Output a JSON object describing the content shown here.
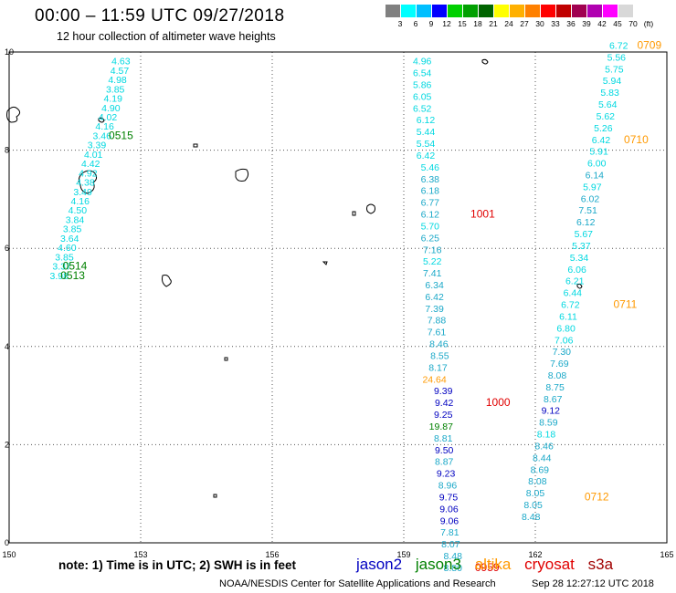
{
  "header": {
    "title": "00:00 – 11:59 UTC 09/27/2018",
    "subtitle": "12 hour collection of altimeter wave heights"
  },
  "color_scale": {
    "swatches": [
      "#808080",
      "#00ffff",
      "#00bfff",
      "#0000ff",
      "#00d000",
      "#00a000",
      "#006400",
      "#ffff00",
      "#ffb000",
      "#ff8000",
      "#ff0000",
      "#c00000",
      "#a00050",
      "#b000b0",
      "#ff00ff",
      "#d8d8d8"
    ],
    "labels": [
      "3",
      "6",
      "9",
      "12",
      "15",
      "18",
      "21",
      "24",
      "27",
      "30",
      "33",
      "36",
      "39",
      "42",
      "45",
      "70",
      "(ft)"
    ]
  },
  "map": {
    "x_range": [
      150,
      165
    ],
    "y_range": [
      0,
      10
    ],
    "x_ticks": [
      "150",
      "153",
      "156",
      "159",
      "162",
      "165"
    ],
    "y_ticks": [
      "0",
      "2",
      "4",
      "6",
      "8",
      "10"
    ]
  },
  "colors": {
    "jason2": "#0000c0",
    "jason3": "#008000",
    "altika": "#ff9900",
    "cryosat": "#e00000",
    "s3a": "#a00000",
    "light": "#00d8e0",
    "mid": "#1aa8c8",
    "time": "#e00000"
  },
  "tracks": [
    {
      "name": "left",
      "points": [
        {
          "lon": 152.55,
          "lat": 9.82,
          "v": "4.63",
          "c": "light"
        },
        {
          "lon": 152.52,
          "lat": 9.63,
          "v": "4.57",
          "c": "light"
        },
        {
          "lon": 152.47,
          "lat": 9.44,
          "v": "4.98",
          "c": "light"
        },
        {
          "lon": 152.42,
          "lat": 9.25,
          "v": "3.85",
          "c": "light"
        },
        {
          "lon": 152.37,
          "lat": 9.06,
          "v": "4.19",
          "c": "light"
        },
        {
          "lon": 152.32,
          "lat": 8.87,
          "v": "4.90",
          "c": "light"
        },
        {
          "lon": 152.25,
          "lat": 8.68,
          "v": "4.02",
          "c": "light"
        },
        {
          "lon": 152.18,
          "lat": 8.49,
          "v": "4.16",
          "c": "light"
        },
        {
          "lon": 152.12,
          "lat": 8.3,
          "v": "3.46",
          "c": "light"
        },
        {
          "lon": 152.0,
          "lat": 8.11,
          "v": "3.39",
          "c": "light"
        },
        {
          "lon": 151.92,
          "lat": 7.92,
          "v": "4.01",
          "c": "light"
        },
        {
          "lon": 151.86,
          "lat": 7.73,
          "v": "4.42",
          "c": "light"
        },
        {
          "lon": 151.8,
          "lat": 7.54,
          "v": "4.92",
          "c": "light"
        },
        {
          "lon": 151.74,
          "lat": 7.35,
          "v": "4.38",
          "c": "light"
        },
        {
          "lon": 151.68,
          "lat": 7.16,
          "v": "3.49",
          "c": "light"
        },
        {
          "lon": 151.62,
          "lat": 6.97,
          "v": "4.16",
          "c": "light"
        },
        {
          "lon": 151.56,
          "lat": 6.78,
          "v": "4.50",
          "c": "light"
        },
        {
          "lon": 151.5,
          "lat": 6.59,
          "v": "3.84",
          "c": "light"
        },
        {
          "lon": 151.44,
          "lat": 6.4,
          "v": "3.85",
          "c": "light"
        },
        {
          "lon": 151.38,
          "lat": 6.21,
          "v": "3.64",
          "c": "light"
        },
        {
          "lon": 151.32,
          "lat": 6.02,
          "v": "4.60",
          "c": "light"
        },
        {
          "lon": 151.26,
          "lat": 5.83,
          "v": "3.85",
          "c": "light"
        },
        {
          "lon": 151.2,
          "lat": 5.64,
          "v": "3.37",
          "c": "light"
        },
        {
          "lon": 151.14,
          "lat": 5.45,
          "v": "3.98",
          "c": "light"
        }
      ]
    },
    {
      "name": "middle",
      "points": [
        {
          "lon": 159.42,
          "lat": 9.82,
          "v": "4.96",
          "c": "light"
        },
        {
          "lon": 159.42,
          "lat": 9.58,
          "v": "6.54",
          "c": "light"
        },
        {
          "lon": 159.42,
          "lat": 9.34,
          "v": "5.86",
          "c": "light"
        },
        {
          "lon": 159.42,
          "lat": 9.1,
          "v": "6.05",
          "c": "light"
        },
        {
          "lon": 159.42,
          "lat": 8.86,
          "v": "6.52",
          "c": "light"
        },
        {
          "lon": 159.5,
          "lat": 8.62,
          "v": "6.12",
          "c": "light"
        },
        {
          "lon": 159.5,
          "lat": 8.38,
          "v": "5.44",
          "c": "light"
        },
        {
          "lon": 159.5,
          "lat": 8.14,
          "v": "5.54",
          "c": "light"
        },
        {
          "lon": 159.5,
          "lat": 7.9,
          "v": "6.42",
          "c": "light"
        },
        {
          "lon": 159.6,
          "lat": 7.66,
          "v": "5.46",
          "c": "light"
        },
        {
          "lon": 159.6,
          "lat": 7.42,
          "v": "6.38",
          "c": "mid"
        },
        {
          "lon": 159.6,
          "lat": 7.18,
          "v": "6.18",
          "c": "mid"
        },
        {
          "lon": 159.6,
          "lat": 6.94,
          "v": "6.77",
          "c": "mid"
        },
        {
          "lon": 159.6,
          "lat": 6.7,
          "v": "6.12",
          "c": "mid"
        },
        {
          "lon": 159.6,
          "lat": 6.46,
          "v": "5.70",
          "c": "light"
        },
        {
          "lon": 159.6,
          "lat": 6.22,
          "v": "6.25",
          "c": "mid"
        },
        {
          "lon": 159.65,
          "lat": 5.98,
          "v": "7.16",
          "c": "mid"
        },
        {
          "lon": 159.65,
          "lat": 5.74,
          "v": "5.22",
          "c": "light"
        },
        {
          "lon": 159.65,
          "lat": 5.5,
          "v": "7.41",
          "c": "mid"
        },
        {
          "lon": 159.7,
          "lat": 5.26,
          "v": "6.34",
          "c": "mid"
        },
        {
          "lon": 159.7,
          "lat": 5.02,
          "v": "6.42",
          "c": "mid"
        },
        {
          "lon": 159.7,
          "lat": 4.78,
          "v": "7.39",
          "c": "mid"
        },
        {
          "lon": 159.75,
          "lat": 4.54,
          "v": "7.88",
          "c": "mid"
        },
        {
          "lon": 159.75,
          "lat": 4.3,
          "v": "7.61",
          "c": "mid"
        },
        {
          "lon": 159.8,
          "lat": 4.06,
          "v": "8.46",
          "c": "mid"
        },
        {
          "lon": 159.82,
          "lat": 3.82,
          "v": "8.55",
          "c": "mid"
        },
        {
          "lon": 159.78,
          "lat": 3.58,
          "v": "8.17",
          "c": "mid"
        },
        {
          "lon": 159.7,
          "lat": 3.34,
          "v": "24.64",
          "c": "altika"
        },
        {
          "lon": 159.9,
          "lat": 3.1,
          "v": "9.39",
          "c": "jason2"
        },
        {
          "lon": 159.92,
          "lat": 2.86,
          "v": "9.42",
          "c": "jason2"
        },
        {
          "lon": 159.9,
          "lat": 2.62,
          "v": "9.25",
          "c": "jason2"
        },
        {
          "lon": 159.85,
          "lat": 2.38,
          "v": "19.87",
          "c": "jason3"
        },
        {
          "lon": 159.9,
          "lat": 2.14,
          "v": "8.81",
          "c": "mid"
        },
        {
          "lon": 159.92,
          "lat": 1.9,
          "v": "9.50",
          "c": "jason2"
        },
        {
          "lon": 159.92,
          "lat": 1.66,
          "v": "8.87",
          "c": "mid"
        },
        {
          "lon": 159.96,
          "lat": 1.42,
          "v": "9.23",
          "c": "jason2"
        },
        {
          "lon": 160.0,
          "lat": 1.18,
          "v": "8.96",
          "c": "mid"
        },
        {
          "lon": 160.02,
          "lat": 0.94,
          "v": "9.75",
          "c": "jason2"
        },
        {
          "lon": 160.03,
          "lat": 0.7,
          "v": "9.06",
          "c": "jason2"
        },
        {
          "lon": 160.04,
          "lat": 0.46,
          "v": "9.06",
          "c": "jason2"
        },
        {
          "lon": 160.05,
          "lat": 0.22,
          "v": "7.81",
          "c": "mid"
        },
        {
          "lon": 160.07,
          "lat": -0.02,
          "v": "8.07",
          "c": "mid"
        },
        {
          "lon": 160.12,
          "lat": -0.26,
          "v": "8.48",
          "c": "mid"
        },
        {
          "lon": 160.12,
          "lat": -0.5,
          "v": "8.80",
          "c": "mid"
        }
      ]
    },
    {
      "name": "right",
      "points": [
        {
          "lon": 163.9,
          "lat": 10.14,
          "v": "6.72",
          "c": "light"
        },
        {
          "lon": 163.85,
          "lat": 9.9,
          "v": "5.56",
          "c": "light"
        },
        {
          "lon": 163.8,
          "lat": 9.66,
          "v": "5.75",
          "c": "light"
        },
        {
          "lon": 163.75,
          "lat": 9.42,
          "v": "5.94",
          "c": "light"
        },
        {
          "lon": 163.7,
          "lat": 9.18,
          "v": "5.83",
          "c": "light"
        },
        {
          "lon": 163.65,
          "lat": 8.94,
          "v": "5.64",
          "c": "light"
        },
        {
          "lon": 163.6,
          "lat": 8.7,
          "v": "5.62",
          "c": "light"
        },
        {
          "lon": 163.55,
          "lat": 8.46,
          "v": "5.26",
          "c": "light"
        },
        {
          "lon": 163.5,
          "lat": 8.22,
          "v": "6.42",
          "c": "light"
        },
        {
          "lon": 163.45,
          "lat": 7.98,
          "v": "5.91",
          "c": "light"
        },
        {
          "lon": 163.4,
          "lat": 7.74,
          "v": "6.00",
          "c": "light"
        },
        {
          "lon": 163.35,
          "lat": 7.5,
          "v": "6.14",
          "c": "mid"
        },
        {
          "lon": 163.3,
          "lat": 7.26,
          "v": "5.97",
          "c": "light"
        },
        {
          "lon": 163.25,
          "lat": 7.02,
          "v": "6.02",
          "c": "mid"
        },
        {
          "lon": 163.2,
          "lat": 6.78,
          "v": "7.51",
          "c": "mid"
        },
        {
          "lon": 163.15,
          "lat": 6.54,
          "v": "6.12",
          "c": "mid"
        },
        {
          "lon": 163.1,
          "lat": 6.3,
          "v": "5.67",
          "c": "light"
        },
        {
          "lon": 163.05,
          "lat": 6.06,
          "v": "5.37",
          "c": "light"
        },
        {
          "lon": 163.0,
          "lat": 5.82,
          "v": "5.34",
          "c": "light"
        },
        {
          "lon": 162.95,
          "lat": 5.58,
          "v": "6.06",
          "c": "light"
        },
        {
          "lon": 162.9,
          "lat": 5.34,
          "v": "6.21",
          "c": "light"
        },
        {
          "lon": 162.85,
          "lat": 5.1,
          "v": "6.44",
          "c": "light"
        },
        {
          "lon": 162.8,
          "lat": 4.86,
          "v": "6.72",
          "c": "light"
        },
        {
          "lon": 162.75,
          "lat": 4.62,
          "v": "6.11",
          "c": "light"
        },
        {
          "lon": 162.7,
          "lat": 4.38,
          "v": "6.80",
          "c": "light"
        },
        {
          "lon": 162.65,
          "lat": 4.14,
          "v": "7.06",
          "c": "light"
        },
        {
          "lon": 162.6,
          "lat": 3.9,
          "v": "7.30",
          "c": "mid"
        },
        {
          "lon": 162.55,
          "lat": 3.66,
          "v": "7.69",
          "c": "mid"
        },
        {
          "lon": 162.5,
          "lat": 3.42,
          "v": "8.08",
          "c": "mid"
        },
        {
          "lon": 162.45,
          "lat": 3.18,
          "v": "8.75",
          "c": "mid"
        },
        {
          "lon": 162.4,
          "lat": 2.94,
          "v": "8.67",
          "c": "mid"
        },
        {
          "lon": 162.35,
          "lat": 2.7,
          "v": "9.12",
          "c": "jason2"
        },
        {
          "lon": 162.3,
          "lat": 2.46,
          "v": "8.59",
          "c": "mid"
        },
        {
          "lon": 162.25,
          "lat": 2.22,
          "v": "8.18",
          "c": "light"
        },
        {
          "lon": 162.2,
          "lat": 1.98,
          "v": "8.46",
          "c": "mid"
        },
        {
          "lon": 162.15,
          "lat": 1.74,
          "v": "8.44",
          "c": "mid"
        },
        {
          "lon": 162.1,
          "lat": 1.5,
          "v": "8.69",
          "c": "mid"
        },
        {
          "lon": 162.05,
          "lat": 1.26,
          "v": "8.08",
          "c": "mid"
        },
        {
          "lon": 162.0,
          "lat": 1.02,
          "v": "8.05",
          "c": "mid"
        },
        {
          "lon": 161.95,
          "lat": 0.78,
          "v": "8.05",
          "c": "mid"
        },
        {
          "lon": 161.9,
          "lat": 0.54,
          "v": "8.48",
          "c": "mid"
        }
      ]
    }
  ],
  "time_labels": [
    {
      "lon": 152.55,
      "lat": 8.3,
      "v": "0515",
      "c": "jason3"
    },
    {
      "lon": 151.5,
      "lat": 5.64,
      "v": "0514",
      "c": "jason3"
    },
    {
      "lon": 151.45,
      "lat": 5.45,
      "v": "0513",
      "c": "jason3"
    },
    {
      "lon": 160.8,
      "lat": 6.7,
      "v": "1001",
      "c": "time"
    },
    {
      "lon": 161.15,
      "lat": 2.86,
      "v": "1000",
      "c": "time"
    },
    {
      "lon": 160.9,
      "lat": -0.5,
      "v": "0959",
      "c": "time"
    },
    {
      "lon": 164.6,
      "lat": 10.14,
      "v": "0709",
      "c": "altika"
    },
    {
      "lon": 164.3,
      "lat": 8.22,
      "v": "0710",
      "c": "altika"
    },
    {
      "lon": 164.05,
      "lat": 4.86,
      "v": "0711",
      "c": "altika"
    },
    {
      "lon": 163.4,
      "lat": 0.94,
      "v": "0712",
      "c": "altika"
    }
  ],
  "footer": {
    "note": "note: 1) Time is in UTC; 2) SWH is in feet",
    "satellites": [
      "jason2",
      "jason3",
      "altika",
      "cryosat",
      "s3a"
    ],
    "credit": "NOAA/NESDIS Center for Satellite Applications and Research",
    "timestamp": "Sep 28 12:27:12 UTC 2018"
  }
}
